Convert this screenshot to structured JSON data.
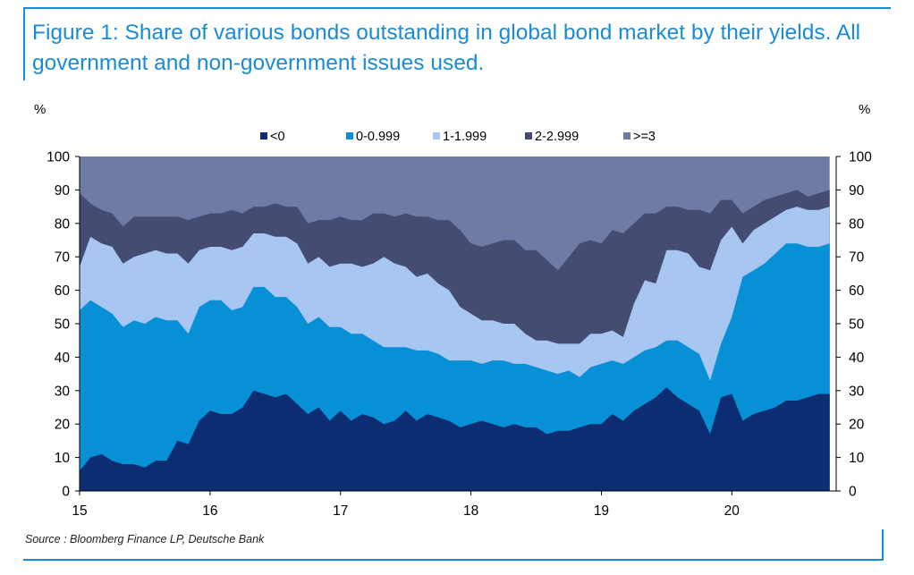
{
  "title": "Figure 1: Share of various bonds outstanding in global bond market by their yields. All government and non-government issues used.",
  "unit_left": "%",
  "unit_right": "%",
  "source": "Source : Bloomberg Finance LP, Deutsche Bank",
  "colors": {
    "frame": "#1a8bd8",
    "series": [
      "#0c2d72",
      "#0790d6",
      "#a7c6f2",
      "#454c72",
      "#6f7aa5"
    ]
  },
  "chart_data": {
    "type": "area",
    "stacked": true,
    "x_tick_labels": [
      "15",
      "16",
      "17",
      "18",
      "19",
      "20"
    ],
    "x_ticks": [
      2015,
      2016,
      2017,
      2018,
      2019,
      2020
    ],
    "xlim": [
      2015,
      2020.8
    ],
    "ylim": [
      0,
      100
    ],
    "y_ticks": [
      0,
      10,
      20,
      30,
      40,
      50,
      60,
      70,
      80,
      90,
      100
    ],
    "secondary_y_axis": true,
    "legend_position": "top-center",
    "x": [
      2015.0,
      2015.083,
      2015.167,
      2015.25,
      2015.333,
      2015.417,
      2015.5,
      2015.583,
      2015.667,
      2015.75,
      2015.833,
      2015.917,
      2016.0,
      2016.083,
      2016.167,
      2016.25,
      2016.333,
      2016.417,
      2016.5,
      2016.583,
      2016.667,
      2016.75,
      2016.833,
      2016.917,
      2017.0,
      2017.083,
      2017.167,
      2017.25,
      2017.333,
      2017.417,
      2017.5,
      2017.583,
      2017.667,
      2017.75,
      2017.833,
      2017.917,
      2018.0,
      2018.083,
      2018.167,
      2018.25,
      2018.333,
      2018.417,
      2018.5,
      2018.583,
      2018.667,
      2018.75,
      2018.833,
      2018.917,
      2019.0,
      2019.083,
      2019.167,
      2019.25,
      2019.333,
      2019.417,
      2019.5,
      2019.583,
      2019.667,
      2019.75,
      2019.833,
      2019.917,
      2020.0,
      2020.083,
      2020.167,
      2020.25,
      2020.333,
      2020.417,
      2020.5,
      2020.583,
      2020.667,
      2020.75
    ],
    "series": [
      {
        "name": "<0",
        "values": [
          6,
          10,
          11,
          9,
          8,
          8,
          7,
          9,
          9,
          15,
          14,
          21,
          24,
          23,
          23,
          25,
          30,
          29,
          28,
          29,
          26,
          23,
          25,
          21,
          24,
          21,
          23,
          22,
          20,
          21,
          24,
          21,
          23,
          22,
          21,
          19,
          20,
          21,
          20,
          19,
          20,
          19,
          19,
          17,
          18,
          18,
          19,
          20,
          20,
          23,
          21,
          24,
          26,
          28,
          31,
          28,
          26,
          24,
          17,
          28,
          29,
          21,
          23,
          24,
          25,
          27,
          27,
          28,
          29,
          29
        ]
      },
      {
        "name": "0-0.999",
        "values": [
          54,
          57,
          55,
          53,
          49,
          51,
          50,
          52,
          51,
          51,
          47,
          55,
          57,
          57,
          54,
          55,
          61,
          61,
          58,
          58,
          55,
          50,
          52,
          49,
          49,
          47,
          47,
          45,
          43,
          43,
          43,
          42,
          42,
          41,
          39,
          39,
          39,
          38,
          39,
          39,
          38,
          38,
          37,
          36,
          35,
          36,
          34,
          37,
          38,
          39,
          38,
          40,
          42,
          43,
          45,
          45,
          43,
          41,
          33,
          44,
          52,
          64,
          66,
          68,
          71,
          74,
          74,
          73,
          73,
          74
        ]
      },
      {
        "name": "1-1.999",
        "values": [
          67,
          76,
          74,
          73,
          68,
          70,
          71,
          72,
          71,
          71,
          68,
          72,
          73,
          73,
          72,
          73,
          77,
          77,
          76,
          76,
          74,
          68,
          70,
          67,
          68,
          68,
          67,
          68,
          70,
          68,
          67,
          64,
          65,
          62,
          60,
          55,
          53,
          51,
          51,
          50,
          50,
          47,
          45,
          45,
          44,
          44,
          44,
          47,
          47,
          48,
          46,
          56,
          63,
          62,
          72,
          72,
          71,
          67,
          66,
          75,
          79,
          74,
          78,
          80,
          82,
          84,
          85,
          84,
          84,
          85
        ]
      },
      {
        "name": "2-2.999",
        "values": [
          89,
          86,
          84,
          83,
          79,
          82,
          82,
          82,
          82,
          82,
          81,
          82,
          83,
          83,
          84,
          83,
          85,
          85,
          86,
          85,
          85,
          80,
          81,
          81,
          82,
          81,
          81,
          83,
          83,
          82,
          83,
          82,
          82,
          81,
          81,
          78,
          74,
          73,
          74,
          75,
          75,
          72,
          72,
          69,
          66,
          70,
          74,
          75,
          74,
          78,
          77,
          80,
          83,
          83,
          85,
          85,
          84,
          84,
          83,
          87,
          87,
          83,
          85,
          87,
          88,
          89,
          90,
          88,
          89,
          90
        ]
      },
      {
        "name": ">=3",
        "values": [
          100,
          100,
          100,
          100,
          100,
          100,
          100,
          100,
          100,
          100,
          100,
          100,
          100,
          100,
          100,
          100,
          100,
          100,
          100,
          100,
          100,
          100,
          100,
          100,
          100,
          100,
          100,
          100,
          100,
          100,
          100,
          100,
          100,
          100,
          100,
          100,
          100,
          100,
          100,
          100,
          100,
          100,
          100,
          100,
          100,
          100,
          100,
          100,
          100,
          100,
          100,
          100,
          100,
          100,
          100,
          100,
          100,
          100,
          100,
          100,
          100,
          100,
          100,
          100,
          100,
          100,
          100,
          100,
          100,
          100
        ]
      }
    ],
    "values_note": "series values are cumulative stacked levels (%)"
  }
}
